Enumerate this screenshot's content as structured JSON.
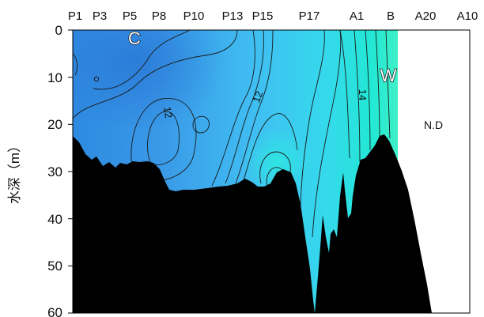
{
  "chart_data": {
    "type": "heatmap",
    "ylabel": "水深（m）",
    "yticks": [
      0,
      10,
      20,
      30,
      40,
      50,
      60
    ],
    "ylim": [
      0,
      60
    ],
    "stations": [
      "P1",
      "P3",
      "P5",
      "P8",
      "P10",
      "P13",
      "P15",
      "P17",
      "A1",
      "B",
      "A20",
      "A10"
    ],
    "contour_labels": [
      "12",
      "12",
      "14"
    ],
    "annotations": [
      "C",
      "W",
      "N.D"
    ],
    "colors": {
      "cold": "#2f8fe0",
      "mid": "#3fb6f0",
      "warm": "#27e6d6",
      "seabed": "#000000",
      "contour": "#1a1a1a"
    }
  }
}
